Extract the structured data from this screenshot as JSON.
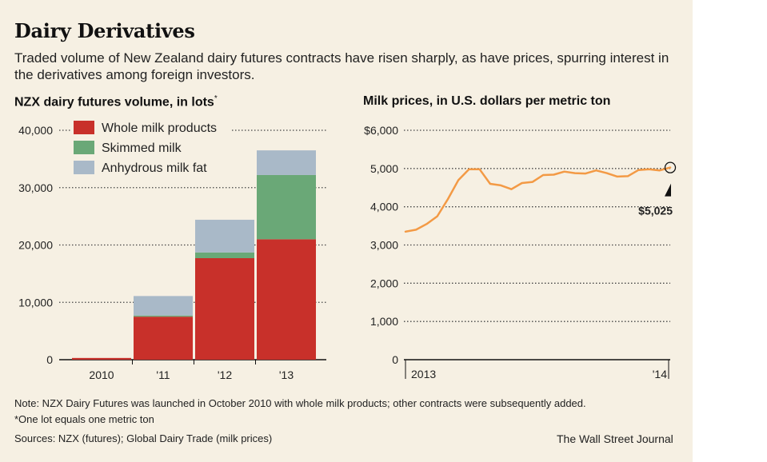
{
  "title": "Dairy Derivatives",
  "subtitle": "Traded volume of New Zealand dairy futures contracts have risen sharply, as have prices, spurring interest in the derivatives among foreign investors.",
  "left_chart_title": "NZX dairy futures volume, in lots",
  "left_chart_title_mark": "*",
  "right_chart_title": "Milk prices, in U.S. dollars per metric ton",
  "notes": {
    "note": "Note: NZX Dairy Futures was launched in October 2010 with whole milk products; other contracts were subsequently added.",
    "footnote": "*One lot equals one metric ton",
    "sources": "Sources: NZX (futures); Global Dairy Trade (milk prices)"
  },
  "brand": "The Wall Street Journal",
  "colors": {
    "background": "#f6f0e3",
    "whole_milk": "#c8302a",
    "skimmed": "#6aa877",
    "anhydrous": "#a9b9c8",
    "line": "#f39a45",
    "grid": "#444444"
  },
  "chart_data": [
    {
      "type": "bar",
      "stacked": true,
      "categories": [
        "2010",
        "'11",
        "'12",
        "'13"
      ],
      "series": [
        {
          "name": "Whole milk products",
          "values": [
            300,
            7500,
            17700,
            21000
          ]
        },
        {
          "name": "Skimmed milk",
          "values": [
            0,
            200,
            1000,
            11200
          ]
        },
        {
          "name": "Anhydrous milk fat",
          "values": [
            0,
            3400,
            5700,
            4300
          ]
        }
      ],
      "ylim": [
        0,
        40000
      ],
      "yticks": [
        0,
        10000,
        20000,
        30000,
        40000
      ],
      "ytick_labels": [
        "0",
        "10,000",
        "20,000",
        "30,000",
        "40,000"
      ],
      "grid": "dotted",
      "legend": "top-left"
    },
    {
      "type": "line",
      "x_labels": [
        "2013",
        "'14"
      ],
      "values": [
        3350,
        3400,
        3550,
        3750,
        4200,
        4700,
        4980,
        4980,
        4600,
        4560,
        4460,
        4620,
        4650,
        4830,
        4840,
        4920,
        4880,
        4870,
        4950,
        4880,
        4790,
        4800,
        4960,
        4980,
        4950,
        5025
      ],
      "ylim": [
        0,
        6000
      ],
      "yticks": [
        0,
        1000,
        2000,
        3000,
        4000,
        5000,
        6000
      ],
      "ytick_labels": [
        "0",
        "1,000",
        "2,000",
        "3,000",
        "4,000",
        "5,000",
        "$6,000"
      ],
      "annotation": "$5,025",
      "grid": "dotted"
    }
  ]
}
